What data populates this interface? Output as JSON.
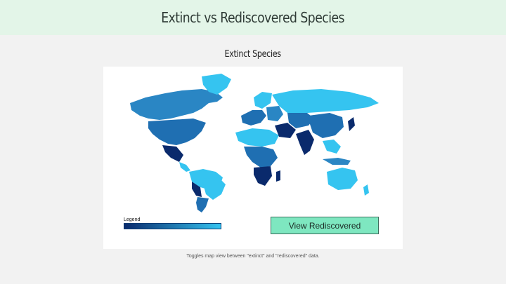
{
  "header": {
    "title": "Extinct vs Rediscovered Species"
  },
  "map_section": {
    "title": "Extinct Species",
    "legend_label": "Legend",
    "legend_colors": {
      "low": "#0a2a6c",
      "high": "#35c4f0"
    }
  },
  "actions": {
    "toggle_button_label": "View Rediscovered"
  },
  "caption": "Toggles map view between \"extinct\" and \"rediscovered\" data.",
  "colors": {
    "header_bg": "#e3f5e8",
    "button_bg": "#7ee7c0",
    "dark_blue": "#0a2a6c",
    "mid_blue": "#1f6fb2",
    "light_blue": "#35c4f0"
  }
}
